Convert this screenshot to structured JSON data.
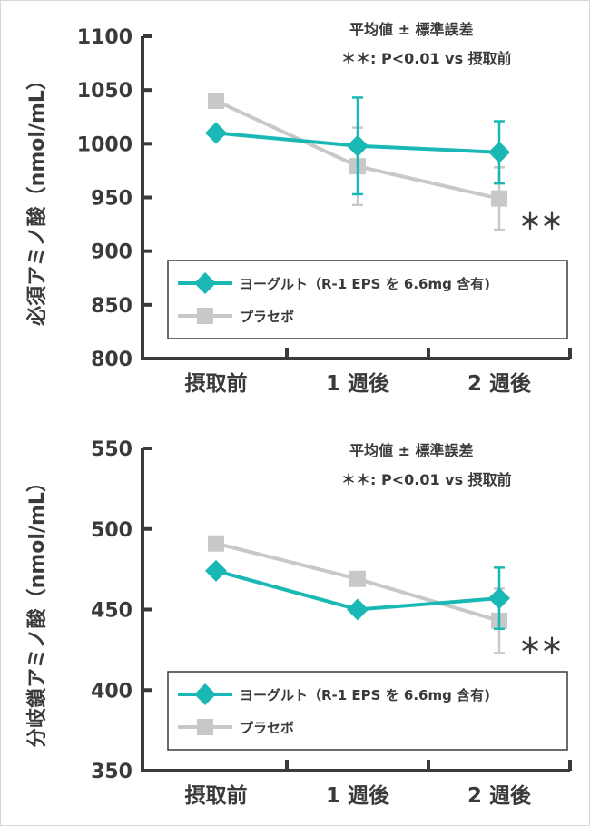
{
  "colors": {
    "yogurt": "#1ab8b4",
    "placebo": "#c8c8c8",
    "axis": "#3a3a3a"
  },
  "chart_data": [
    {
      "type": "line",
      "ylabel": "必須アミノ酸（nmol/mL）",
      "categories": [
        "摂取前",
        "1 週後",
        "2 週後"
      ],
      "ylim": [
        800,
        1100
      ],
      "yticks": [
        "800",
        "850",
        "900",
        "950",
        "1000",
        "1050",
        "1100"
      ],
      "note1": "平均値 ± 標準誤差",
      "note2": "＊＊: P<0.01 vs 摂取前",
      "significance": "＊＊",
      "legend_position": "bottom-right",
      "series": [
        {
          "name": "ヨーグルト（R-1 EPS を 6.6mg 含有)",
          "marker": "diamond",
          "values": [
            1010,
            998,
            992
          ],
          "error": [
            null,
            45,
            29
          ]
        },
        {
          "name": "プラセボ",
          "marker": "square",
          "values": [
            1040,
            979,
            949
          ],
          "error": [
            null,
            36,
            29
          ]
        }
      ]
    },
    {
      "type": "line",
      "ylabel": "分岐鎖アミノ酸（nmol/mL）",
      "categories": [
        "摂取前",
        "1 週後",
        "2 週後"
      ],
      "ylim": [
        350,
        550
      ],
      "yticks": [
        "350",
        "400",
        "450",
        "500",
        "550"
      ],
      "note1": "平均値 ± 標準誤差",
      "note2": "＊＊: P<0.01 vs 摂取前",
      "significance": "＊＊",
      "legend_position": "bottom-right",
      "series": [
        {
          "name": "ヨーグルト（R-1 EPS を 6.6mg 含有)",
          "marker": "diamond",
          "values": [
            474,
            450,
            457
          ],
          "error": [
            null,
            null,
            19
          ]
        },
        {
          "name": "プラセボ",
          "marker": "square",
          "values": [
            491,
            469,
            443
          ],
          "error": [
            null,
            null,
            20
          ]
        }
      ]
    }
  ]
}
